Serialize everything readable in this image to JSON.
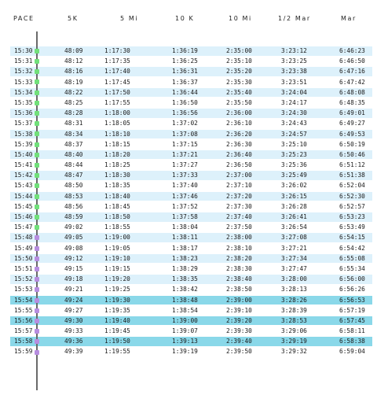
{
  "columns": [
    "PACE",
    "5K",
    "5 Mi",
    "10 K",
    "10 Mi",
    "1/2 Mar",
    "Mar"
  ],
  "colors": {
    "row_light": "#ddf1fb",
    "row_dark": "#8ad8e9",
    "row_white": "#ffffff",
    "spine": "#6a6a6a",
    "dot_green": "#71e07a",
    "dot_purple": "#b78de0"
  },
  "rows": [
    {
      "pace": "15:30",
      "k5": "48:09",
      "mi5": "1:17:30",
      "k10": "1:36:19",
      "mi10": "2:35:00",
      "half": "3:23:12",
      "mar": "6:46:23",
      "bg": "light",
      "dot": "green"
    },
    {
      "pace": "15:31",
      "k5": "48:12",
      "mi5": "1:17:35",
      "k10": "1:36:25",
      "mi10": "2:35:10",
      "half": "3:23:25",
      "mar": "6:46:50",
      "bg": "white",
      "dot": "green"
    },
    {
      "pace": "15:32",
      "k5": "48:16",
      "mi5": "1:17:40",
      "k10": "1:36:31",
      "mi10": "2:35:20",
      "half": "3:23:38",
      "mar": "6:47:16",
      "bg": "light",
      "dot": "green"
    },
    {
      "pace": "15:33",
      "k5": "48:19",
      "mi5": "1:17:45",
      "k10": "1:36:37",
      "mi10": "2:35:30",
      "half": "3:23:51",
      "mar": "6:47:42",
      "bg": "white",
      "dot": "green"
    },
    {
      "pace": "15:34",
      "k5": "48:22",
      "mi5": "1:17:50",
      "k10": "1:36:44",
      "mi10": "2:35:40",
      "half": "3:24:04",
      "mar": "6:48:08",
      "bg": "light",
      "dot": "green"
    },
    {
      "pace": "15:35",
      "k5": "48:25",
      "mi5": "1:17:55",
      "k10": "1:36:50",
      "mi10": "2:35:50",
      "half": "3:24:17",
      "mar": "6:48:35",
      "bg": "white",
      "dot": "green"
    },
    {
      "pace": "15:36",
      "k5": "48:28",
      "mi5": "1:18:00",
      "k10": "1:36:56",
      "mi10": "2:36:00",
      "half": "3:24:30",
      "mar": "6:49:01",
      "bg": "light",
      "dot": "green"
    },
    {
      "pace": "15:37",
      "k5": "48:31",
      "mi5": "1:18:05",
      "k10": "1:37:02",
      "mi10": "2:36:10",
      "half": "3:24:43",
      "mar": "6:49:27",
      "bg": "white",
      "dot": "green"
    },
    {
      "pace": "15:38",
      "k5": "48:34",
      "mi5": "1:18:10",
      "k10": "1:37:08",
      "mi10": "2:36:20",
      "half": "3:24:57",
      "mar": "6:49:53",
      "bg": "light",
      "dot": "green"
    },
    {
      "pace": "15:39",
      "k5": "48:37",
      "mi5": "1:18:15",
      "k10": "1:37:15",
      "mi10": "2:36:30",
      "half": "3:25:10",
      "mar": "6:50:19",
      "bg": "white",
      "dot": "green"
    },
    {
      "pace": "15:40",
      "k5": "48:40",
      "mi5": "1:18:20",
      "k10": "1:37:21",
      "mi10": "2:36:40",
      "half": "3:25:23",
      "mar": "6:50:46",
      "bg": "light",
      "dot": "green"
    },
    {
      "pace": "15:41",
      "k5": "48:44",
      "mi5": "1:18:25",
      "k10": "1:37:27",
      "mi10": "2:36:50",
      "half": "3:25:36",
      "mar": "6:51:12",
      "bg": "white",
      "dot": "green"
    },
    {
      "pace": "15:42",
      "k5": "48:47",
      "mi5": "1:18:30",
      "k10": "1:37:33",
      "mi10": "2:37:00",
      "half": "3:25:49",
      "mar": "6:51:38",
      "bg": "light",
      "dot": "green"
    },
    {
      "pace": "15:43",
      "k5": "48:50",
      "mi5": "1:18:35",
      "k10": "1:37:40",
      "mi10": "2:37:10",
      "half": "3:26:02",
      "mar": "6:52:04",
      "bg": "white",
      "dot": "green"
    },
    {
      "pace": "15:44",
      "k5": "48:53",
      "mi5": "1:18:40",
      "k10": "1:37:46",
      "mi10": "2:37:20",
      "half": "3:26:15",
      "mar": "6:52:30",
      "bg": "light",
      "dot": "green"
    },
    {
      "pace": "15:45",
      "k5": "48:56",
      "mi5": "1:18:45",
      "k10": "1:37:52",
      "mi10": "2:37:30",
      "half": "3:26:28",
      "mar": "6:52:57",
      "bg": "white",
      "dot": "green"
    },
    {
      "pace": "15:46",
      "k5": "48:59",
      "mi5": "1:18:50",
      "k10": "1:37:58",
      "mi10": "2:37:40",
      "half": "3:26:41",
      "mar": "6:53:23",
      "bg": "light",
      "dot": "green"
    },
    {
      "pace": "15:47",
      "k5": "49:02",
      "mi5": "1:18:55",
      "k10": "1:38:04",
      "mi10": "2:37:50",
      "half": "3:26:54",
      "mar": "6:53:49",
      "bg": "white",
      "dot": "green"
    },
    {
      "pace": "15:48",
      "k5": "49:05",
      "mi5": "1:19:00",
      "k10": "1:38:11",
      "mi10": "2:38:00",
      "half": "3:27:08",
      "mar": "6:54:15",
      "bg": "light",
      "dot": "purple"
    },
    {
      "pace": "15:49",
      "k5": "49:08",
      "mi5": "1:19:05",
      "k10": "1:38:17",
      "mi10": "2:38:10",
      "half": "3:27:21",
      "mar": "6:54:42",
      "bg": "white",
      "dot": "purple"
    },
    {
      "pace": "15:50",
      "k5": "49:12",
      "mi5": "1:19:10",
      "k10": "1:38:23",
      "mi10": "2:38:20",
      "half": "3:27:34",
      "mar": "6:55:08",
      "bg": "light",
      "dot": "purple"
    },
    {
      "pace": "15:51",
      "k5": "49:15",
      "mi5": "1:19:15",
      "k10": "1:38:29",
      "mi10": "2:38:30",
      "half": "3:27:47",
      "mar": "6:55:34",
      "bg": "white",
      "dot": "purple"
    },
    {
      "pace": "15:52",
      "k5": "49:18",
      "mi5": "1:19:20",
      "k10": "1:38:35",
      "mi10": "2:38:40",
      "half": "3:28:00",
      "mar": "6:56:00",
      "bg": "light",
      "dot": "purple"
    },
    {
      "pace": "15:53",
      "k5": "49:21",
      "mi5": "1:19:25",
      "k10": "1:38:42",
      "mi10": "2:38:50",
      "half": "3:28:13",
      "mar": "6:56:26",
      "bg": "white",
      "dot": "purple"
    },
    {
      "pace": "15:54",
      "k5": "49:24",
      "mi5": "1:19:30",
      "k10": "1:38:48",
      "mi10": "2:39:00",
      "half": "3:28:26",
      "mar": "6:56:53",
      "bg": "dark",
      "dot": "purple"
    },
    {
      "pace": "15:55",
      "k5": "49:27",
      "mi5": "1:19:35",
      "k10": "1:38:54",
      "mi10": "2:39:10",
      "half": "3:28:39",
      "mar": "6:57:19",
      "bg": "white",
      "dot": "purple"
    },
    {
      "pace": "15:56",
      "k5": "49:30",
      "mi5": "1:19:40",
      "k10": "1:39:00",
      "mi10": "2:39:20",
      "half": "3:28:53",
      "mar": "6:57:45",
      "bg": "dark",
      "dot": "purple"
    },
    {
      "pace": "15:57",
      "k5": "49:33",
      "mi5": "1:19:45",
      "k10": "1:39:07",
      "mi10": "2:39:30",
      "half": "3:29:06",
      "mar": "6:58:11",
      "bg": "white",
      "dot": "purple"
    },
    {
      "pace": "15:58",
      "k5": "49:36",
      "mi5": "1:19:50",
      "k10": "1:39:13",
      "mi10": "2:39:40",
      "half": "3:29:19",
      "mar": "6:58:38",
      "bg": "dark",
      "dot": "purple"
    },
    {
      "pace": "15:59",
      "k5": "49:39",
      "mi5": "1:19:55",
      "k10": "1:39:19",
      "mi10": "2:39:50",
      "half": "3:29:32",
      "mar": "6:59:04",
      "bg": "white",
      "dot": "purple"
    }
  ]
}
